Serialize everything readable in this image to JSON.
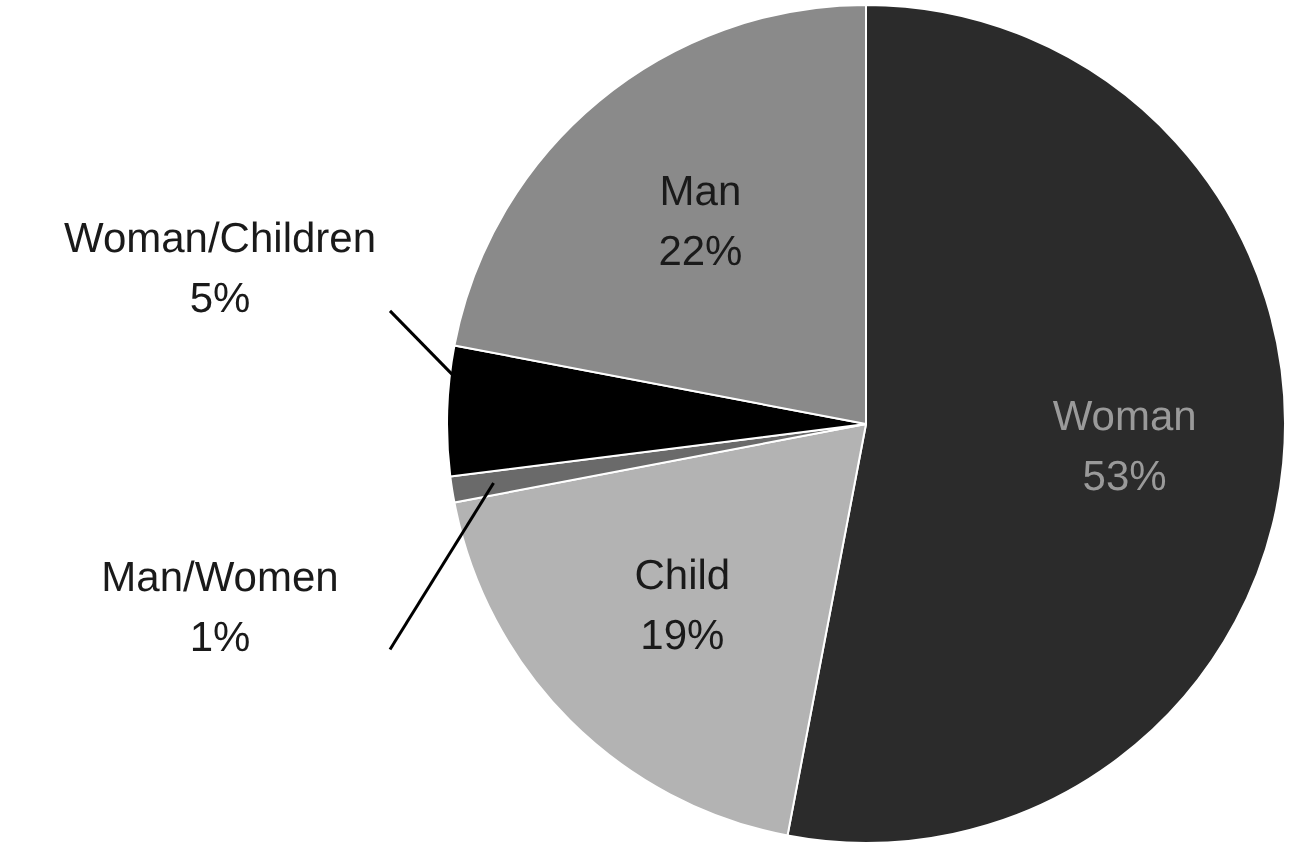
{
  "chart_data": {
    "type": "pie",
    "categories": [
      "Woman",
      "Child",
      "Man/Women",
      "Woman/Children",
      "Man"
    ],
    "values": [
      53,
      19,
      1,
      5,
      22
    ],
    "value_labels": [
      "53%",
      "19%",
      "1%",
      "5%",
      "22%"
    ],
    "colors": [
      "#2b2b2b",
      "#b3b3b3",
      "#6a6a6a",
      "#000000",
      "#8a8a8a"
    ],
    "legend": false
  }
}
